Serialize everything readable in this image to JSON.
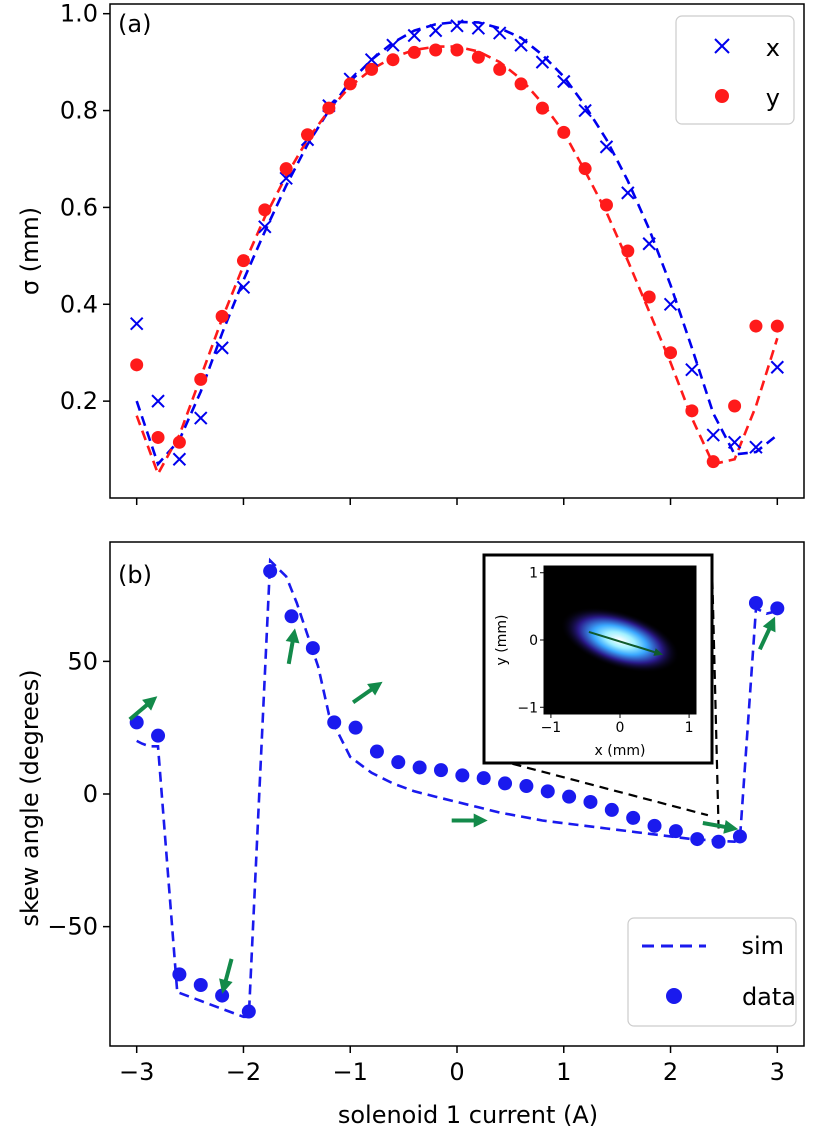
{
  "colors": {
    "x_series": "#0000ee",
    "y_series": "#ff1a1a",
    "skew_series": "#1a1aee",
    "arrows": "#138a4a",
    "connector": "#000000"
  },
  "chart_data": [
    {
      "panel_label": "(a)",
      "type": "scatter",
      "xlabel": "",
      "ylabel": "σ (mm)",
      "xlim": [
        -3.25,
        3.25
      ],
      "ylim": [
        0.0,
        1.02
      ],
      "x_ticks": [
        -3,
        -2,
        -1,
        0,
        1,
        2,
        3
      ],
      "y_ticks": [
        0.2,
        0.4,
        0.6,
        0.8,
        1.0
      ],
      "y_tick_labels": [
        "0.2",
        "0.4",
        "0.6",
        "0.8",
        "1.0"
      ],
      "legend": {
        "position": "top-right",
        "entries": [
          "x",
          "y"
        ]
      },
      "series": [
        {
          "name": "x",
          "kind": "data",
          "marker": "x",
          "x": [
            -3.0,
            -2.8,
            -2.6,
            -2.4,
            -2.2,
            -2.0,
            -1.8,
            -1.6,
            -1.4,
            -1.2,
            -1.0,
            -0.8,
            -0.6,
            -0.4,
            -0.2,
            0.0,
            0.2,
            0.4,
            0.6,
            0.8,
            1.0,
            1.2,
            1.4,
            1.6,
            1.8,
            2.0,
            2.2,
            2.4,
            2.6,
            2.8,
            3.0
          ],
          "y": [
            0.36,
            0.2,
            0.08,
            0.165,
            0.31,
            0.435,
            0.56,
            0.66,
            0.74,
            0.81,
            0.865,
            0.905,
            0.935,
            0.955,
            0.965,
            0.975,
            0.97,
            0.96,
            0.935,
            0.9,
            0.86,
            0.8,
            0.725,
            0.63,
            0.525,
            0.4,
            0.265,
            0.13,
            0.115,
            0.105,
            0.27
          ]
        },
        {
          "name": "y",
          "kind": "data",
          "marker": "circle",
          "x": [
            -3.0,
            -2.8,
            -2.6,
            -2.4,
            -2.2,
            -2.0,
            -1.8,
            -1.6,
            -1.4,
            -1.2,
            -1.0,
            -0.8,
            -0.6,
            -0.4,
            -0.2,
            0.0,
            0.2,
            0.4,
            0.6,
            0.8,
            1.0,
            1.2,
            1.4,
            1.6,
            1.8,
            2.0,
            2.2,
            2.4,
            2.6,
            2.8,
            3.0
          ],
          "y": [
            0.275,
            0.125,
            0.115,
            0.245,
            0.375,
            0.49,
            0.595,
            0.68,
            0.75,
            0.805,
            0.855,
            0.885,
            0.905,
            0.92,
            0.925,
            0.925,
            0.91,
            0.885,
            0.855,
            0.805,
            0.755,
            0.68,
            0.605,
            0.51,
            0.415,
            0.3,
            0.18,
            0.075,
            0.19,
            0.355,
            0.355
          ]
        },
        {
          "name": "x-sim",
          "kind": "sim",
          "style": "dashed",
          "x": [
            -3.0,
            -2.8,
            -2.6,
            -2.4,
            -2.2,
            -2.0,
            -1.8,
            -1.6,
            -1.4,
            -1.2,
            -1.0,
            -0.8,
            -0.6,
            -0.4,
            -0.2,
            0.0,
            0.2,
            0.4,
            0.6,
            0.8,
            1.0,
            1.2,
            1.4,
            1.6,
            1.8,
            2.0,
            2.2,
            2.4,
            2.6,
            2.8,
            3.0
          ],
          "y": [
            0.2,
            0.07,
            0.12,
            0.22,
            0.34,
            0.45,
            0.55,
            0.645,
            0.73,
            0.8,
            0.86,
            0.905,
            0.94,
            0.965,
            0.978,
            0.983,
            0.982,
            0.97,
            0.95,
            0.915,
            0.87,
            0.81,
            0.74,
            0.655,
            0.555,
            0.44,
            0.31,
            0.175,
            0.09,
            0.095,
            0.13
          ]
        },
        {
          "name": "y-sim",
          "kind": "sim",
          "style": "dashed",
          "x": [
            -3.0,
            -2.8,
            -2.6,
            -2.4,
            -2.2,
            -2.0,
            -1.8,
            -1.6,
            -1.4,
            -1.2,
            -1.0,
            -0.8,
            -0.6,
            -0.4,
            -0.2,
            0.0,
            0.2,
            0.4,
            0.6,
            0.8,
            1.0,
            1.2,
            1.4,
            1.6,
            1.8,
            2.0,
            2.2,
            2.4,
            2.6,
            2.8,
            3.0
          ],
          "y": [
            0.17,
            0.05,
            0.13,
            0.25,
            0.37,
            0.48,
            0.58,
            0.665,
            0.74,
            0.8,
            0.85,
            0.885,
            0.91,
            0.925,
            0.932,
            0.932,
            0.922,
            0.9,
            0.865,
            0.815,
            0.755,
            0.675,
            0.59,
            0.49,
            0.385,
            0.28,
            0.165,
            0.07,
            0.08,
            0.19,
            0.33
          ]
        }
      ]
    },
    {
      "panel_label": "(b)",
      "type": "scatter",
      "xlabel": "solenoid 1 current (A)",
      "ylabel": "skew angle (degrees)",
      "xlim": [
        -3.25,
        3.25
      ],
      "ylim": [
        -95,
        95
      ],
      "x_ticks": [
        -3,
        -2,
        -1,
        0,
        1,
        2,
        3
      ],
      "x_tick_labels": [
        "−3",
        "−2",
        "−1",
        "0",
        "1",
        "2",
        "3"
      ],
      "y_ticks": [
        -50,
        0,
        50
      ],
      "y_tick_labels": [
        "−50",
        "0",
        "50"
      ],
      "legend": {
        "position": "bottom-right",
        "entries": [
          "sim",
          "data"
        ]
      },
      "series": [
        {
          "name": "data",
          "kind": "data",
          "marker": "circle",
          "x": [
            -3.0,
            -2.8,
            -2.6,
            -2.4,
            -2.2,
            -1.95,
            -1.75,
            -1.55,
            -1.35,
            -1.15,
            -0.95,
            -0.75,
            -0.55,
            -0.35,
            -0.15,
            0.05,
            0.25,
            0.45,
            0.65,
            0.85,
            1.05,
            1.25,
            1.45,
            1.65,
            1.85,
            2.05,
            2.25,
            2.45,
            2.65,
            2.8,
            3.0
          ],
          "y": [
            27,
            22,
            -68,
            -72,
            -76,
            -82,
            84,
            67,
            55,
            27,
            25,
            16,
            12,
            10,
            9,
            7,
            6,
            4,
            3,
            1,
            -1,
            -3,
            -6,
            -9,
            -12,
            -14,
            -17,
            -18,
            -16,
            72,
            70
          ]
        },
        {
          "name": "sim",
          "kind": "sim",
          "style": "dashed",
          "x": [
            -3.0,
            -2.95,
            -2.88,
            -2.8,
            -2.62,
            -2.6,
            -2.4,
            -2.2,
            -2.0,
            -1.95,
            -1.75,
            -1.6,
            -1.5,
            -1.3,
            -1.2,
            -1.0,
            -0.8,
            -0.6,
            -0.4,
            -0.2,
            0.0,
            0.2,
            0.4,
            0.6,
            0.8,
            1.0,
            1.2,
            1.4,
            1.6,
            1.8,
            2.0,
            2.2,
            2.4,
            2.6,
            2.65,
            2.8,
            2.9,
            3.0
          ],
          "y": [
            20,
            19,
            18,
            18,
            -75,
            -75,
            -78,
            -81,
            -84,
            -84,
            88,
            82,
            72,
            48,
            30,
            14,
            8,
            4,
            1,
            -1,
            -3,
            -5,
            -7,
            -8.5,
            -10,
            -11,
            -12,
            -13,
            -14,
            -15,
            -16,
            -17,
            -17.5,
            -18,
            -17,
            70,
            68,
            69
          ]
        }
      ],
      "arrows": [
        {
          "x": -2.95,
          "y": 32,
          "angle_deg": 40
        },
        {
          "x": -2.15,
          "y": -68,
          "angle_deg": -105
        },
        {
          "x": -1.55,
          "y": 55,
          "angle_deg": 80
        },
        {
          "x": -0.85,
          "y": 38,
          "angle_deg": 35
        },
        {
          "x": 0.1,
          "y": -10,
          "angle_deg": 0
        },
        {
          "x": 2.45,
          "y": -12,
          "angle_deg": -10
        },
        {
          "x": 2.9,
          "y": 60,
          "angle_deg": 65
        }
      ],
      "inset": {
        "xlabel": "x (mm)",
        "ylabel": "y (mm)",
        "x_ticks": [
          -1,
          0,
          1
        ],
        "x_tick_labels": [
          "−1",
          "0",
          "1"
        ],
        "y_ticks": [
          -1,
          0,
          1
        ],
        "y_tick_labels": [
          "−1",
          "0",
          "1"
        ],
        "xlim": [
          -1.1,
          1.1
        ],
        "ylim": [
          -1.1,
          1.1
        ],
        "arrow_from": [
          -0.45,
          0.12
        ],
        "arrow_to": [
          0.5,
          -0.18
        ],
        "connector_targets": [
          [
            2.35,
            -8
          ],
          [
            2.45,
            -13
          ]
        ]
      }
    }
  ]
}
